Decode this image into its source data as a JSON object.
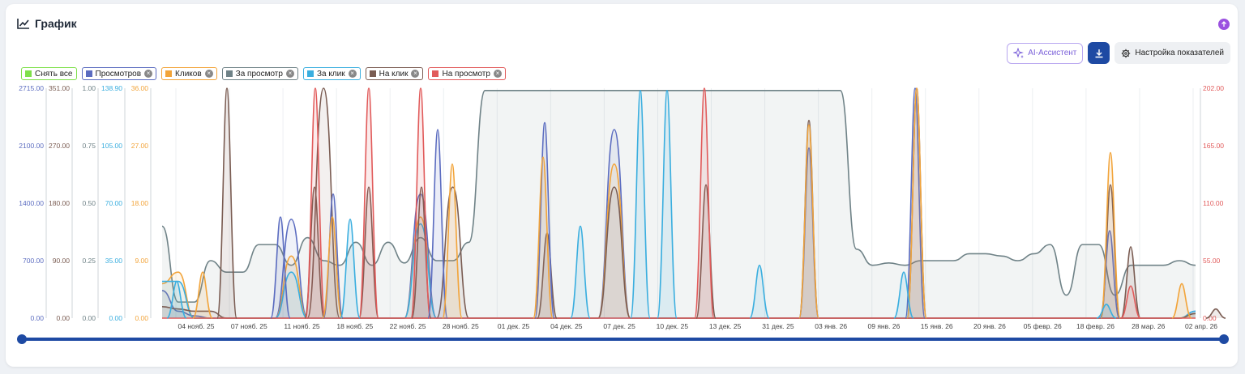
{
  "header": {
    "title": "График",
    "icon": "chart-line-icon",
    "upload_icon": "arrow-up-circle-icon"
  },
  "toolbar": {
    "ai_label": "AI-Ассистент",
    "download_icon": "download-icon",
    "settings_label": "Настройка показателей",
    "settings_icon": "gear-icon"
  },
  "legend": [
    {
      "label": "Снять все",
      "color": "#7ee04a",
      "closable": false
    },
    {
      "label": "Просмотров",
      "color": "#5b6cc0",
      "closable": true
    },
    {
      "label": "Кликов",
      "color": "#f2a43a",
      "closable": true
    },
    {
      "label": "За просмотр",
      "color": "#6f8287",
      "closable": true
    },
    {
      "label": "За клик",
      "color": "#3aaedf",
      "closable": true
    },
    {
      "label": "На клик",
      "color": "#7a5c52",
      "closable": true
    },
    {
      "label": "На просмотр",
      "color": "#e15a5a",
      "closable": true
    }
  ],
  "chart_data": {
    "type": "area",
    "x": [
      "04 нояб. 25",
      "07 нояб. 25",
      "11 нояб. 25",
      "18 нояб. 25",
      "22 нояб. 25",
      "28 нояб. 25",
      "01 дек. 25",
      "04 дек. 25",
      "07 дек. 25",
      "10 дек. 25",
      "13 дек. 25",
      "31 дек. 25",
      "03 янв. 26",
      "09 янв. 26",
      "15 янв. 26",
      "20 янв. 26",
      "05 февр. 26",
      "18 февр. 26",
      "28 мар. 26",
      "02 апр. 26"
    ],
    "axes": [
      {
        "series": "Просмотров",
        "ticks": [
          "2715.00",
          "2100.00",
          "1400.00",
          "700.00",
          "0.00"
        ],
        "range": [
          0,
          2715
        ]
      },
      {
        "series": "На клик",
        "ticks": [
          "351.00",
          "270.00",
          "180.00",
          "90.00",
          "0.00"
        ],
        "range": [
          0,
          351
        ]
      },
      {
        "series": "За просмотр",
        "ticks": [
          "1.00",
          "0.75",
          "0.50",
          "0.25",
          "0.00"
        ],
        "range": [
          0,
          1
        ]
      },
      {
        "series": "За клик",
        "ticks": [
          "138.90",
          "105.00",
          "70.00",
          "35.00",
          "0.00"
        ],
        "range": [
          0,
          138.9
        ]
      },
      {
        "series": "Кликов",
        "ticks": [
          "36.00",
          "27.00",
          "18.00",
          "9.00",
          "0.00"
        ],
        "range": [
          0,
          36
        ]
      },
      {
        "series": "На просмотр",
        "ticks": [
          "202.00",
          "165.00",
          "110.00",
          "55.00",
          "0.00"
        ],
        "range": [
          0,
          202
        ]
      }
    ],
    "series": [
      {
        "name": "За просмотр",
        "color": "#6f8287",
        "fraction_of_max": [
          0.4,
          0.07,
          0.07,
          0.25,
          0.2,
          0.2,
          0.32,
          0.32,
          0.23,
          0.35,
          0.25,
          0.23,
          0.33,
          0.23,
          0.33,
          0.24,
          0.35,
          0.25,
          0.25,
          0.33,
          0.99,
          0.99,
          0.99,
          0.99,
          0.99,
          0.99,
          0.99,
          0.99,
          0.99,
          0.99,
          0.99,
          0.99,
          0.99,
          0.99,
          0.99,
          0.99,
          0.99,
          0.99,
          0.99,
          0.99,
          0.99,
          0.99,
          0.99,
          0.3,
          0.23,
          0.24,
          0.23,
          0.25,
          0.25,
          0.25,
          0.28,
          0.28,
          0.27,
          0.25,
          0.28,
          0.32,
          0.1,
          0.32,
          0.32,
          0.1,
          0.23,
          0.23,
          0.23,
          0.25,
          0.23
        ]
      },
      {
        "name": "Просмотров",
        "color": "#5b6cc0",
        "fraction_of_max": [
          0.12,
          0.03,
          0.01,
          0.0,
          0.0,
          0.0,
          0.0,
          0.0,
          0.43,
          0.0,
          0.0,
          0.0,
          0.0,
          0.0,
          0.0,
          0.0,
          0.54,
          0.0,
          0.0,
          0.0,
          0.0,
          0.0,
          0.0,
          0.0,
          0.0,
          0.0,
          0.0,
          0.0,
          0.82,
          0.0,
          0.0,
          0.0,
          0.0,
          0.0,
          0.0,
          0.0,
          0.0,
          0.0,
          0.0,
          0.0,
          0.0,
          0.0,
          0.0,
          0.0,
          0.0,
          0.0,
          0.0,
          0.0,
          0.0,
          0.0,
          0.0,
          0.0,
          0.0,
          0.0,
          0.0,
          0.0,
          0.0,
          0.0,
          0.0,
          0.0,
          0.0,
          0.0,
          0.0,
          0.0,
          0.03
        ]
      },
      {
        "name": "Кликов",
        "color": "#f2a43a",
        "fraction_of_max": [
          0.15,
          0.2,
          0.0,
          0.0,
          0.0,
          0.0,
          0.0,
          0.0,
          0.27,
          0.0,
          0.0,
          0.0,
          0.0,
          0.0,
          0.0,
          0.0,
          0.44,
          0.0,
          0.0,
          0.0,
          0.0,
          0.0,
          0.0,
          0.0,
          0.0,
          0.0,
          0.0,
          0.0,
          0.67,
          0.0,
          0.0,
          0.0,
          0.0,
          0.0,
          0.0,
          0.0,
          0.0,
          0.0,
          0.0,
          0.0,
          0.0,
          0.0,
          0.0,
          0.0,
          0.0,
          0.0,
          0.0,
          0.0,
          0.0,
          0.0,
          0.0,
          0.0,
          0.0,
          0.0,
          0.0,
          0.0,
          0.0,
          0.0,
          0.0,
          0.0,
          0.0,
          0.0,
          0.0,
          0.0,
          0.02
        ]
      },
      {
        "name": "За клик",
        "color": "#3aaedf",
        "fraction_of_max": [
          0.16,
          0.16,
          0.0,
          0.0,
          0.0,
          0.0,
          0.0,
          0.0,
          0.2,
          0.0,
          0.0,
          0.0,
          0.0,
          0.0,
          0.0,
          0.0,
          0.41,
          0.0,
          0.0,
          0.0,
          0.0,
          0.0,
          0.0,
          0.0,
          0.0,
          0.0,
          0.0,
          0.0,
          0.0,
          0.0,
          0.0,
          0.0,
          0.0,
          0.0,
          0.0,
          0.0,
          0.0,
          0.0,
          0.0,
          0.0,
          0.0,
          0.0,
          0.0,
          0.0,
          0.0,
          0.0,
          0.0,
          0.0,
          0.0,
          0.0,
          0.0,
          0.0,
          0.0,
          0.0,
          0.0,
          0.0,
          0.0,
          0.0,
          0.0,
          0.0,
          0.0,
          0.0,
          0.0,
          0.0,
          0.03
        ]
      },
      {
        "name": "На клик",
        "color": "#7a5c52",
        "fraction_of_max": [
          0.05,
          0.04,
          0.03,
          0.03,
          0.0,
          0.0,
          0.0,
          0.0,
          0.0,
          0.0,
          1.0,
          0.0,
          0.0,
          0.0,
          0.0,
          0.0,
          0.0,
          0.0,
          0.57,
          0.0,
          0.0,
          0.0,
          0.0,
          0.0,
          0.0,
          0.0,
          0.0,
          0.0,
          0.57,
          0.0,
          0.0,
          0.0,
          0.0,
          0.0,
          0.0,
          0.0,
          0.0,
          0.0,
          0.0,
          0.0,
          0.0,
          0.0,
          0.0,
          0.0,
          0.0,
          0.0,
          0.0,
          0.0,
          0.0,
          0.0,
          0.0,
          0.0,
          0.0,
          0.0,
          0.0,
          0.0,
          0.0,
          0.0,
          0.0,
          0.0,
          0.0,
          0.0,
          0.0,
          0.0,
          0.02
        ]
      },
      {
        "name": "На просмотр",
        "color": "#e15a5a",
        "fraction_of_max": [
          0.0,
          0.0,
          0.0,
          0.0,
          0.0,
          0.0,
          0.0,
          0.0,
          0.0,
          0.0,
          0.0,
          0.0,
          0.0,
          0.0,
          0.0,
          0.0,
          0.0,
          0.0,
          0.0,
          0.0,
          0.0,
          0.0,
          0.0,
          0.0,
          0.0,
          0.0,
          0.0,
          0.0,
          0.0,
          0.0,
          0.0,
          0.0,
          0.0,
          0.0,
          0.0,
          0.0,
          0.0,
          0.0,
          0.0,
          0.0,
          0.0,
          0.0,
          0.0,
          0.0,
          0.0,
          0.0,
          0.0,
          0.0,
          0.0,
          0.0,
          0.0,
          0.0,
          0.0,
          0.0,
          0.0,
          0.0,
          0.0,
          0.0,
          0.0,
          0.0,
          0.0,
          0.0,
          0.0,
          0.0,
          0.0
        ]
      }
    ],
    "peaks": [
      {
        "series": "На клик",
        "fraction_of_max": [
          1.0,
          0.57,
          0.57,
          0.57,
          0.37,
          0.58,
          1.0,
          0.86,
          0.58,
          0.31,
          0.04
        ]
      },
      {
        "series": "На просмотр",
        "fraction_of_max": [
          1.0,
          1.0,
          1.0,
          1.0,
          0.14
        ]
      },
      {
        "series": "Просмотров",
        "fraction_of_max": [
          0.44,
          0.54,
          0.82,
          0.85,
          0.74,
          1.0,
          0.38
        ]
      },
      {
        "series": "Кликов",
        "fraction_of_max": [
          0.2,
          0.44,
          0.67,
          0.7,
          0.84,
          1.0,
          0.72,
          0.15
        ]
      },
      {
        "series": "За клик",
        "fraction_of_max": [
          0.16,
          0.43,
          0.4,
          0.99,
          0.99,
          0.23,
          0.2,
          0.06
        ]
      }
    ],
    "grid": true
  },
  "scrollbar": {
    "range": [
      0,
      1
    ]
  }
}
